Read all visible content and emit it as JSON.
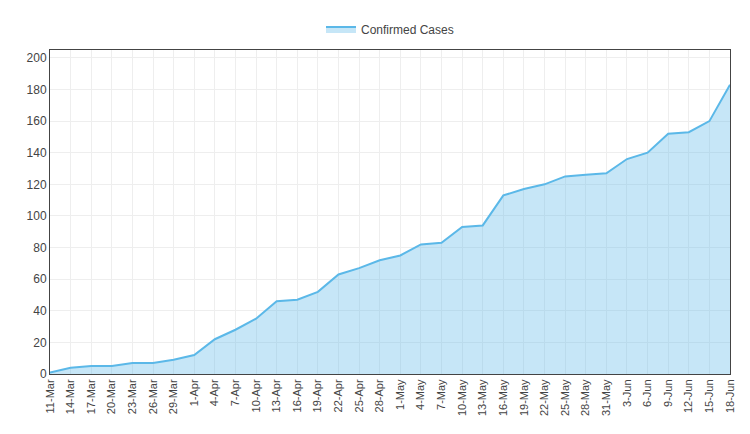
{
  "chart_data": {
    "type": "area",
    "categories": [
      "11-Mar",
      "14-Mar",
      "17-Mar",
      "20-Mar",
      "23-Mar",
      "26-Mar",
      "29-Mar",
      "1-Apr",
      "4-Apr",
      "7-Apr",
      "10-Apr",
      "13-Apr",
      "16-Apr",
      "19-Apr",
      "22-Apr",
      "25-Apr",
      "28-Apr",
      "1-May",
      "4-May",
      "7-May",
      "10-May",
      "13-May",
      "16-May",
      "19-May",
      "22-May",
      "25-May",
      "28-May",
      "31-May",
      "3-Jun",
      "6-Jun",
      "9-Jun",
      "12-Jun",
      "15-Jun",
      "18-Jun"
    ],
    "series": [
      {
        "name": "Confirmed Cases",
        "color": "#5bb8e8",
        "values": [
          1,
          4,
          5,
          5,
          7,
          7,
          9,
          12,
          22,
          28,
          35,
          46,
          47,
          52,
          63,
          67,
          72,
          75,
          82,
          83,
          93,
          94,
          113,
          117,
          120,
          125,
          126,
          127,
          136,
          140,
          152,
          153,
          160,
          183
        ]
      }
    ],
    "ylim": [
      0,
      205
    ],
    "yticks": [
      0,
      20,
      40,
      60,
      80,
      100,
      120,
      140,
      160,
      180,
      200
    ],
    "grid": true,
    "legend": "top"
  }
}
